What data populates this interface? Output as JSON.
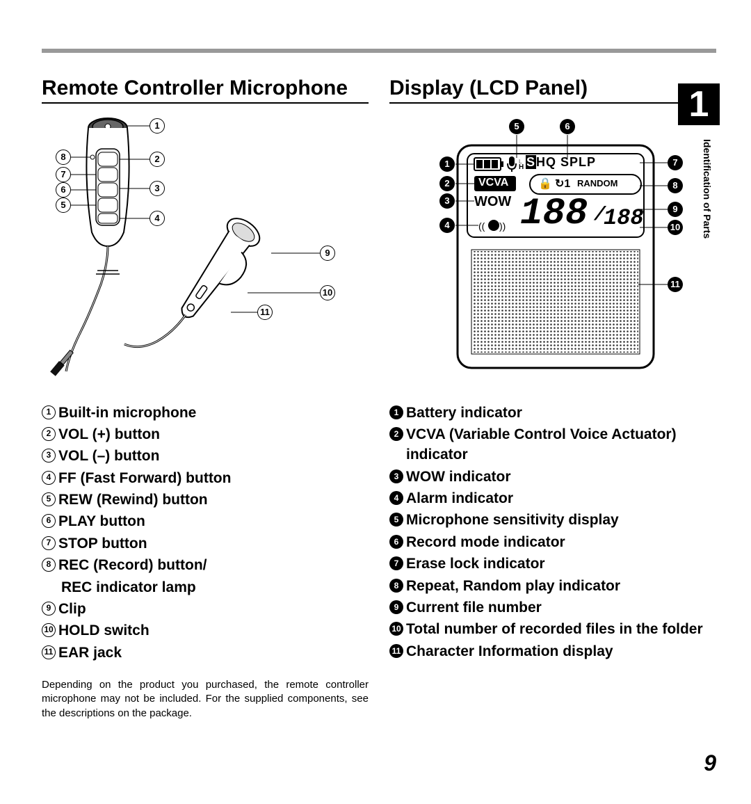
{
  "page": {
    "chapter_number": "1",
    "side_label": "Identification of Parts",
    "page_number": "9"
  },
  "left": {
    "title": "Remote Controller Microphone",
    "callouts_front": [
      "1",
      "2",
      "3",
      "4",
      "5",
      "6",
      "7",
      "8"
    ],
    "callouts_side": [
      "9",
      "10",
      "11"
    ],
    "items": [
      {
        "n": "1",
        "t": "Built-in microphone"
      },
      {
        "n": "2",
        "t": "VOL (+) button"
      },
      {
        "n": "3",
        "t": "VOL (–) button"
      },
      {
        "n": "4",
        "t": "FF (Fast Forward) button"
      },
      {
        "n": "5",
        "t": "REW (Rewind) button"
      },
      {
        "n": "6",
        "t": "PLAY button"
      },
      {
        "n": "7",
        "t": "STOP button"
      },
      {
        "n": "8",
        "t": "REC (Record) button/"
      },
      {
        "n": "",
        "t": "REC indicator lamp",
        "indent": true
      },
      {
        "n": "9",
        "t": "Clip"
      },
      {
        "n": "10",
        "t": "HOLD switch"
      },
      {
        "n": "11",
        "t": "EAR jack"
      }
    ],
    "footnote": "Depending on the product you purchased, the remote controller microphone may not be included. For the supplied components, see the descriptions on the package."
  },
  "right": {
    "title": "Display (LCD Panel)",
    "lcd": {
      "shq": "SHQ",
      "splp": "SPLP",
      "vcva": "VCVA",
      "wow": "WOW",
      "random": "RANDOM",
      "big_num": "188",
      "small_num": "188",
      "slash": "/",
      "lock": "🔒",
      "repeat": "↻1"
    },
    "callouts": [
      "1",
      "2",
      "3",
      "4",
      "5",
      "6",
      "7",
      "8",
      "9",
      "10",
      "11"
    ],
    "items": [
      {
        "n": "1",
        "t": "Battery indicator"
      },
      {
        "n": "2",
        "t": "VCVA (Variable Control Voice Actuator) indicator"
      },
      {
        "n": "3",
        "t": "WOW indicator"
      },
      {
        "n": "4",
        "t": "Alarm indicator"
      },
      {
        "n": "5",
        "t": "Microphone sensitivity display"
      },
      {
        "n": "6",
        "t": "Record mode indicator"
      },
      {
        "n": "7",
        "t": "Erase lock indicator"
      },
      {
        "n": "8",
        "t": "Repeat, Random play indicator"
      },
      {
        "n": "9",
        "t": "Current file number"
      },
      {
        "n": "10",
        "t": "Total number of recorded files in the folder"
      },
      {
        "n": "11",
        "t": "Character Information display"
      }
    ]
  }
}
